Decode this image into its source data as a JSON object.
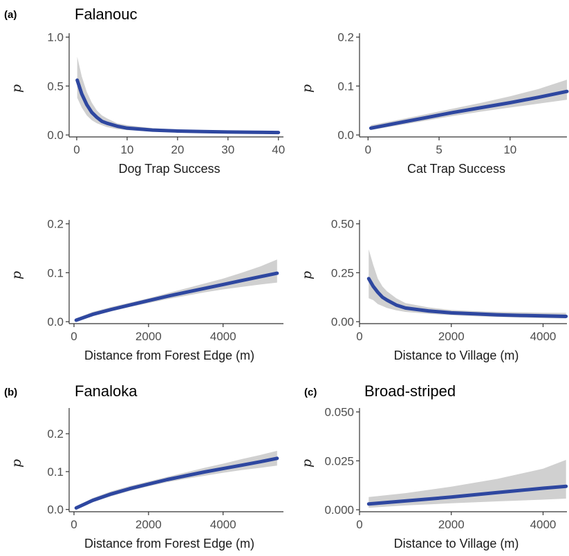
{
  "figure": {
    "colors": {
      "line": "#2e47a0",
      "ci_band": "#d0d0d0"
    }
  },
  "chart_data": [
    {
      "id": "falanouc-dog",
      "type": "line",
      "panel_tag": "(a)",
      "panel_title": "Falanouc",
      "ylabel": "p",
      "xlabel": "Dog Trap Success",
      "xlim": [
        -1.5,
        41
      ],
      "ylim": [
        -0.02,
        1.04
      ],
      "xticks": [
        {
          "v": 0,
          "label": "0"
        },
        {
          "v": 10,
          "label": "10"
        },
        {
          "v": 20,
          "label": "20"
        },
        {
          "v": 30,
          "label": "30"
        },
        {
          "v": 40,
          "label": "40"
        }
      ],
      "yticks": [
        {
          "v": 0,
          "label": "0.0"
        },
        {
          "v": 0.5,
          "label": "0.5"
        },
        {
          "v": 1,
          "label": "1.0"
        }
      ],
      "series": [
        {
          "x": [
            0.1,
            1,
            2,
            3,
            4,
            5,
            6,
            8,
            10,
            15,
            20,
            25,
            30,
            35,
            40
          ],
          "y": [
            0.56,
            0.42,
            0.31,
            0.23,
            0.18,
            0.14,
            0.12,
            0.09,
            0.07,
            0.05,
            0.04,
            0.035,
            0.03,
            0.028,
            0.025
          ],
          "lower": [
            0.38,
            0.28,
            0.2,
            0.15,
            0.12,
            0.1,
            0.08,
            0.06,
            0.05,
            0.035,
            0.028,
            0.022,
            0.018,
            0.015,
            0.013
          ],
          "upper": [
            0.8,
            0.6,
            0.44,
            0.33,
            0.25,
            0.2,
            0.17,
            0.12,
            0.1,
            0.07,
            0.055,
            0.05,
            0.045,
            0.042,
            0.04
          ]
        }
      ]
    },
    {
      "id": "falanouc-cat",
      "type": "line",
      "panel_tag": "",
      "panel_title": "",
      "ylabel": "p",
      "xlabel": "Cat Trap Success",
      "xlim": [
        -0.6,
        14
      ],
      "ylim": [
        -0.004,
        0.208
      ],
      "xticks": [
        {
          "v": 0,
          "label": "0"
        },
        {
          "v": 5,
          "label": "5"
        },
        {
          "v": 10,
          "label": "10"
        }
      ],
      "yticks": [
        {
          "v": 0,
          "label": "0.0"
        },
        {
          "v": 0.1,
          "label": "0.1"
        },
        {
          "v": 0.2,
          "label": "0.2"
        }
      ],
      "series": [
        {
          "x": [
            0.2,
            2,
            4,
            6,
            8,
            10,
            12,
            14
          ],
          "y": [
            0.014,
            0.024,
            0.035,
            0.046,
            0.056,
            0.066,
            0.077,
            0.089
          ],
          "lower": [
            0.01,
            0.019,
            0.029,
            0.039,
            0.048,
            0.056,
            0.064,
            0.072
          ],
          "upper": [
            0.02,
            0.03,
            0.042,
            0.054,
            0.066,
            0.079,
            0.094,
            0.113
          ]
        }
      ]
    },
    {
      "id": "falanouc-forest",
      "type": "line",
      "panel_tag": "",
      "panel_title": "",
      "ylabel": "p",
      "xlabel": "Distance from Forest Edge (m)",
      "xlim": [
        -130,
        5620
      ],
      "ylim": [
        -0.004,
        0.208
      ],
      "xticks": [
        {
          "v": 0,
          "label": "0"
        },
        {
          "v": 2000,
          "label": "2000"
        },
        {
          "v": 4000,
          "label": "4000"
        }
      ],
      "yticks": [
        {
          "v": 0,
          "label": "0.0"
        },
        {
          "v": 0.1,
          "label": "0.1"
        },
        {
          "v": 0.2,
          "label": "0.2"
        }
      ],
      "series": [
        {
          "x": [
            60,
            500,
            1000,
            1500,
            2000,
            2500,
            3000,
            3500,
            4000,
            4500,
            5000,
            5450
          ],
          "y": [
            0.003,
            0.015,
            0.025,
            0.034,
            0.043,
            0.052,
            0.06,
            0.068,
            0.076,
            0.084,
            0.092,
            0.099
          ],
          "lower": [
            0.001,
            0.011,
            0.021,
            0.03,
            0.038,
            0.046,
            0.053,
            0.06,
            0.066,
            0.071,
            0.076,
            0.08
          ],
          "upper": [
            0.007,
            0.02,
            0.03,
            0.039,
            0.048,
            0.058,
            0.068,
            0.078,
            0.088,
            0.1,
            0.113,
            0.127
          ]
        }
      ]
    },
    {
      "id": "falanouc-village",
      "type": "line",
      "panel_tag": "",
      "panel_title": "",
      "ylabel": "p",
      "xlabel": "Distance to Village (m)",
      "xlim": [
        0,
        4520
      ],
      "ylim": [
        -0.01,
        0.52
      ],
      "xticks": [
        {
          "v": 0,
          "label": "0"
        },
        {
          "v": 2000,
          "label": "2000"
        },
        {
          "v": 4000,
          "label": "4000"
        }
      ],
      "yticks": [
        {
          "v": 0,
          "label": "0.00"
        },
        {
          "v": 0.25,
          "label": "0.25"
        },
        {
          "v": 0.5,
          "label": "0.50"
        }
      ],
      "series": [
        {
          "x": [
            200,
            300,
            400,
            500,
            600,
            800,
            1000,
            1500,
            2000,
            2500,
            3000,
            3500,
            4000,
            4500
          ],
          "y": [
            0.22,
            0.18,
            0.15,
            0.125,
            0.11,
            0.085,
            0.07,
            0.055,
            0.045,
            0.04,
            0.035,
            0.032,
            0.03,
            0.027
          ],
          "lower": [
            0.12,
            0.11,
            0.09,
            0.08,
            0.07,
            0.058,
            0.05,
            0.04,
            0.033,
            0.028,
            0.024,
            0.021,
            0.018,
            0.016
          ],
          "upper": [
            0.37,
            0.29,
            0.22,
            0.18,
            0.155,
            0.12,
            0.095,
            0.073,
            0.06,
            0.054,
            0.05,
            0.048,
            0.046,
            0.045
          ]
        }
      ]
    },
    {
      "id": "fanaloka-forest",
      "type": "line",
      "panel_tag": "(b)",
      "panel_title": "Fanaloka",
      "ylabel": "p",
      "xlabel": "Distance from Forest Edge (m)",
      "xlim": [
        -130,
        5620
      ],
      "ylim": [
        -0.006,
        0.268
      ],
      "xticks": [
        {
          "v": 0,
          "label": "0"
        },
        {
          "v": 2000,
          "label": "2000"
        },
        {
          "v": 4000,
          "label": "4000"
        }
      ],
      "yticks": [
        {
          "v": 0,
          "label": "0.0"
        },
        {
          "v": 0.1,
          "label": "0.1"
        },
        {
          "v": 0.2,
          "label": "0.2"
        }
      ],
      "series": [
        {
          "x": [
            60,
            500,
            1000,
            1500,
            2000,
            2500,
            3000,
            3500,
            4000,
            4500,
            5000,
            5450
          ],
          "y": [
            0.004,
            0.024,
            0.041,
            0.055,
            0.067,
            0.079,
            0.089,
            0.099,
            0.108,
            0.117,
            0.126,
            0.135
          ],
          "lower": [
            0.001,
            0.019,
            0.035,
            0.049,
            0.061,
            0.072,
            0.081,
            0.089,
            0.097,
            0.104,
            0.11,
            0.116
          ],
          "upper": [
            0.008,
            0.03,
            0.048,
            0.062,
            0.074,
            0.086,
            0.098,
            0.11,
            0.121,
            0.133,
            0.144,
            0.155
          ]
        }
      ]
    },
    {
      "id": "broadstriped-village",
      "type": "line",
      "panel_tag": "(c)",
      "panel_title": "Broad-striped",
      "ylabel": "p",
      "xlabel": "Distance to Village (m)",
      "xlim": [
        0,
        4520
      ],
      "ylim": [
        -0.001,
        0.052
      ],
      "xticks": [
        {
          "v": 0,
          "label": "0"
        },
        {
          "v": 2000,
          "label": "2000"
        },
        {
          "v": 4000,
          "label": "4000"
        }
      ],
      "yticks": [
        {
          "v": 0,
          "label": "0.000"
        },
        {
          "v": 0.025,
          "label": "0.025"
        },
        {
          "v": 0.05,
          "label": "0.050"
        }
      ],
      "series": [
        {
          "x": [
            200,
            1000,
            2000,
            3000,
            4000,
            4500
          ],
          "y": [
            0.003,
            0.0045,
            0.0065,
            0.0088,
            0.011,
            0.012
          ],
          "lower": [
            0.001,
            0.0022,
            0.0033,
            0.0043,
            0.0052,
            0.0057
          ],
          "upper": [
            0.0065,
            0.0085,
            0.0118,
            0.0158,
            0.021,
            0.0255
          ]
        }
      ]
    }
  ]
}
